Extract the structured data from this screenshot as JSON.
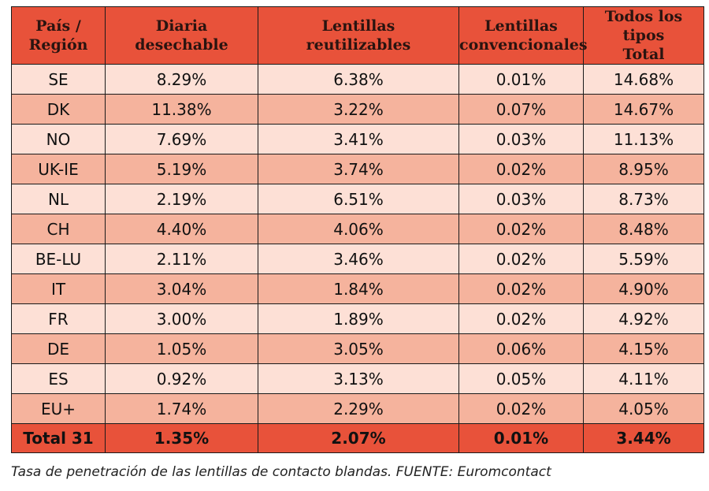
{
  "headers": [
    [
      "País /",
      "Región"
    ],
    [
      "Diaria",
      "desechable"
    ],
    [
      "Lentillas",
      "reutilizables"
    ],
    [
      "Lentillas",
      "convencionales"
    ],
    [
      "Todos los tipos",
      "Total"
    ]
  ],
  "rows": [
    [
      "SE",
      "8.29%",
      "6.38%",
      "0.01%",
      "14.68%"
    ],
    [
      "DK",
      "11.38%",
      "3.22%",
      "0.07%",
      "14.67%"
    ],
    [
      "NO",
      "7.69%",
      "3.41%",
      "0.03%",
      "11.13%"
    ],
    [
      "UK-IE",
      "5.19%",
      "3.74%",
      "0.02%",
      "8.95%"
    ],
    [
      "NL",
      "2.19%",
      "6.51%",
      "0.03%",
      "8.73%"
    ],
    [
      "CH",
      "4.40%",
      "4.06%",
      "0.02%",
      "8.48%"
    ],
    [
      "BE-LU",
      "2.11%",
      "3.46%",
      "0.02%",
      "5.59%"
    ],
    [
      "IT",
      "3.04%",
      "1.84%",
      "0.02%",
      "4.90%"
    ],
    [
      "FR",
      "3.00%",
      "1.89%",
      "0.02%",
      "4.92%"
    ],
    [
      "DE",
      "1.05%",
      "3.05%",
      "0.06%",
      "4.15%"
    ],
    [
      "ES",
      "0.92%",
      "3.13%",
      "0.05%",
      "4.11%"
    ],
    [
      "EU+",
      "1.74%",
      "2.29%",
      "0.02%",
      "4.05%"
    ]
  ],
  "total": [
    "Total 31",
    "1.35%",
    "2.07%",
    "0.01%",
    "3.44%"
  ],
  "caption": "Tasa de penetración de las lentillas de contacto blandas. FUENTE: Euromcontact",
  "colors": {
    "header": "#e8523a",
    "row_light": "#fde0d6",
    "row_dark": "#f5b39d"
  }
}
